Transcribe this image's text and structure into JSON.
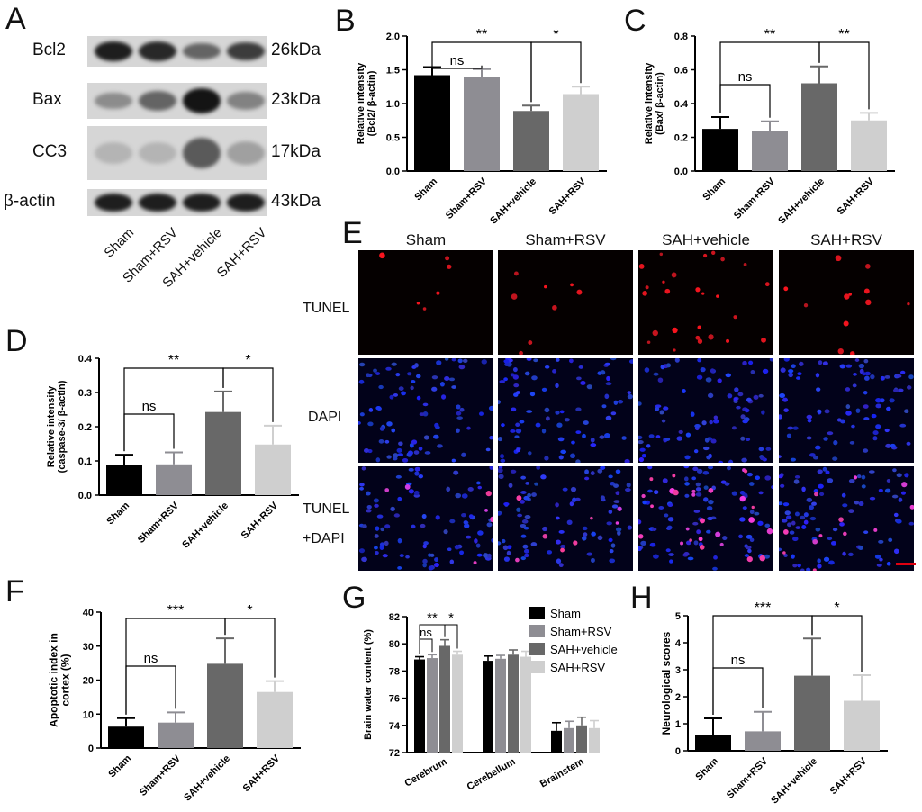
{
  "panel_letters": [
    "A",
    "B",
    "C",
    "D",
    "E",
    "F",
    "G",
    "H"
  ],
  "blot": {
    "rows": [
      {
        "label": "Bcl2",
        "kda": "26kDa"
      },
      {
        "label": "Bax",
        "kda": "23kDa"
      },
      {
        "label": "CC3",
        "kda": "17kDa"
      },
      {
        "label": "β-actin",
        "kda": "43kDa"
      }
    ],
    "lanes": [
      "Sham",
      "Sham+RSV",
      "SAH+vehicle",
      "SAH+RSV"
    ],
    "band_intensity": {
      "Bcl2": [
        0.9,
        0.85,
        0.55,
        0.75
      ],
      "Bax": [
        0.35,
        0.55,
        0.95,
        0.4
      ],
      "CC3": [
        0.15,
        0.15,
        0.6,
        0.25
      ],
      "β-actin": [
        0.9,
        0.9,
        0.9,
        0.9
      ]
    }
  },
  "micro": {
    "columns": [
      "Sham",
      "Sham+RSV",
      "SAH+vehicle",
      "SAH+RSV"
    ],
    "rows": [
      "TUNEL",
      "DAPI",
      "TUNEL",
      "+DAPI"
    ]
  },
  "colors": {
    "sham": "#000000",
    "sham_rsv": "#8e8d93",
    "sah_vehicle": "#686868",
    "sah_rsv": "#cfcfcf"
  },
  "chart_data": [
    {
      "panel": "B",
      "type": "bar",
      "categories": [
        "Sham",
        "Sham+RSV",
        "SAH+vehicle",
        "SAH+RSV"
      ],
      "values": [
        1.42,
        1.39,
        0.89,
        1.14
      ],
      "errors": [
        0.12,
        0.12,
        0.08,
        0.11
      ],
      "ylabel": "Relative intensity\n(Bcl2/ β-actin)",
      "ylim": [
        0,
        2.0
      ],
      "yticks": [
        "0.0",
        "0.5",
        "1.0",
        "1.5",
        "2.0"
      ],
      "brackets": [
        {
          "from": 0,
          "to": 1,
          "label": "ns"
        },
        {
          "from": 0,
          "to": 2,
          "label": "**"
        },
        {
          "from": 2,
          "to": 3,
          "label": "*"
        }
      ]
    },
    {
      "panel": "C",
      "type": "bar",
      "categories": [
        "Sham",
        "Sham+RSV",
        "SAH+vehicle",
        "SAH+RSV"
      ],
      "values": [
        0.25,
        0.24,
        0.52,
        0.3
      ],
      "errors": [
        0.07,
        0.055,
        0.1,
        0.045
      ],
      "ylabel": "Relative intensity\n(Bax/ β-actin)",
      "ylim": [
        0,
        0.8
      ],
      "yticks": [
        "0.0",
        "0.2",
        "0.4",
        "0.6",
        "0.8"
      ],
      "brackets": [
        {
          "from": 0,
          "to": 1,
          "label": "ns"
        },
        {
          "from": 0,
          "to": 2,
          "label": "**"
        },
        {
          "from": 2,
          "to": 3,
          "label": "**"
        }
      ]
    },
    {
      "panel": "D",
      "type": "bar",
      "categories": [
        "Sham",
        "Sham+RSV",
        "SAH+vehicle",
        "SAH+RSV"
      ],
      "values": [
        0.088,
        0.09,
        0.243,
        0.148
      ],
      "errors": [
        0.03,
        0.035,
        0.06,
        0.055
      ],
      "ylabel": "Relative intensity\n(caspase-3/ β-actin)",
      "ylim": [
        0,
        0.4
      ],
      "yticks": [
        "0.0",
        "0.1",
        "0.2",
        "0.3",
        "0.4"
      ],
      "brackets": [
        {
          "from": 0,
          "to": 1,
          "label": "ns"
        },
        {
          "from": 0,
          "to": 2,
          "label": "**"
        },
        {
          "from": 2,
          "to": 3,
          "label": "*"
        }
      ]
    },
    {
      "panel": "F",
      "type": "bar",
      "categories": [
        "Sham",
        "Sham+RSV",
        "SAH+vehicle",
        "SAH+RSV"
      ],
      "values": [
        6.3,
        7.5,
        24.8,
        16.5
      ],
      "errors": [
        2.5,
        3.0,
        7.5,
        3.2
      ],
      "ylabel": "Apoptotic index in\ncortex (%)",
      "ylim": [
        0,
        40
      ],
      "yticks": [
        "0",
        "10",
        "20",
        "30",
        "40"
      ],
      "brackets": [
        {
          "from": 0,
          "to": 1,
          "label": "ns"
        },
        {
          "from": 0,
          "to": 2,
          "label": "***"
        },
        {
          "from": 2,
          "to": 3,
          "label": "*"
        }
      ]
    },
    {
      "panel": "G",
      "type": "bar",
      "categories": [
        "Cerebrum",
        "Cerebellum",
        "Brainstem"
      ],
      "series": [
        {
          "name": "Sham",
          "values": [
            78.85,
            78.75,
            73.6
          ],
          "errors": [
            0.2,
            0.35,
            0.6
          ]
        },
        {
          "name": "Sham+RSV",
          "values": [
            78.95,
            78.9,
            73.8
          ],
          "errors": [
            0.25,
            0.25,
            0.5
          ]
        },
        {
          "name": "SAH+vehicle",
          "values": [
            79.85,
            79.2,
            74.0
          ],
          "errors": [
            0.45,
            0.35,
            0.6
          ]
        },
        {
          "name": "SAH+RSV",
          "values": [
            79.2,
            79.05,
            73.8
          ],
          "errors": [
            0.25,
            0.4,
            0.55
          ]
        }
      ],
      "ylabel": "Brain water content (%)",
      "ylim": [
        72,
        82
      ],
      "yticks": [
        "72",
        "74",
        "76",
        "78",
        "80",
        "82"
      ],
      "brackets": [
        {
          "from": 0,
          "to": 1,
          "label": "ns"
        },
        {
          "from": 0,
          "to": 2,
          "label": "**"
        },
        {
          "from": 2,
          "to": 3,
          "label": "*"
        }
      ]
    },
    {
      "panel": "H",
      "type": "bar",
      "categories": [
        "Sham",
        "Sham+RSV",
        "SAH+vehicle",
        "SAH+RSV"
      ],
      "values": [
        0.6,
        0.72,
        2.78,
        1.85
      ],
      "errors": [
        0.6,
        0.72,
        1.38,
        0.95
      ],
      "ylabel": "Neurological scores",
      "ylim": [
        0,
        5
      ],
      "yticks": [
        "0",
        "1",
        "2",
        "3",
        "4",
        "5"
      ],
      "brackets": [
        {
          "from": 0,
          "to": 1,
          "label": "ns"
        },
        {
          "from": 0,
          "to": 2,
          "label": "***"
        },
        {
          "from": 2,
          "to": 3,
          "label": "*"
        }
      ]
    }
  ]
}
